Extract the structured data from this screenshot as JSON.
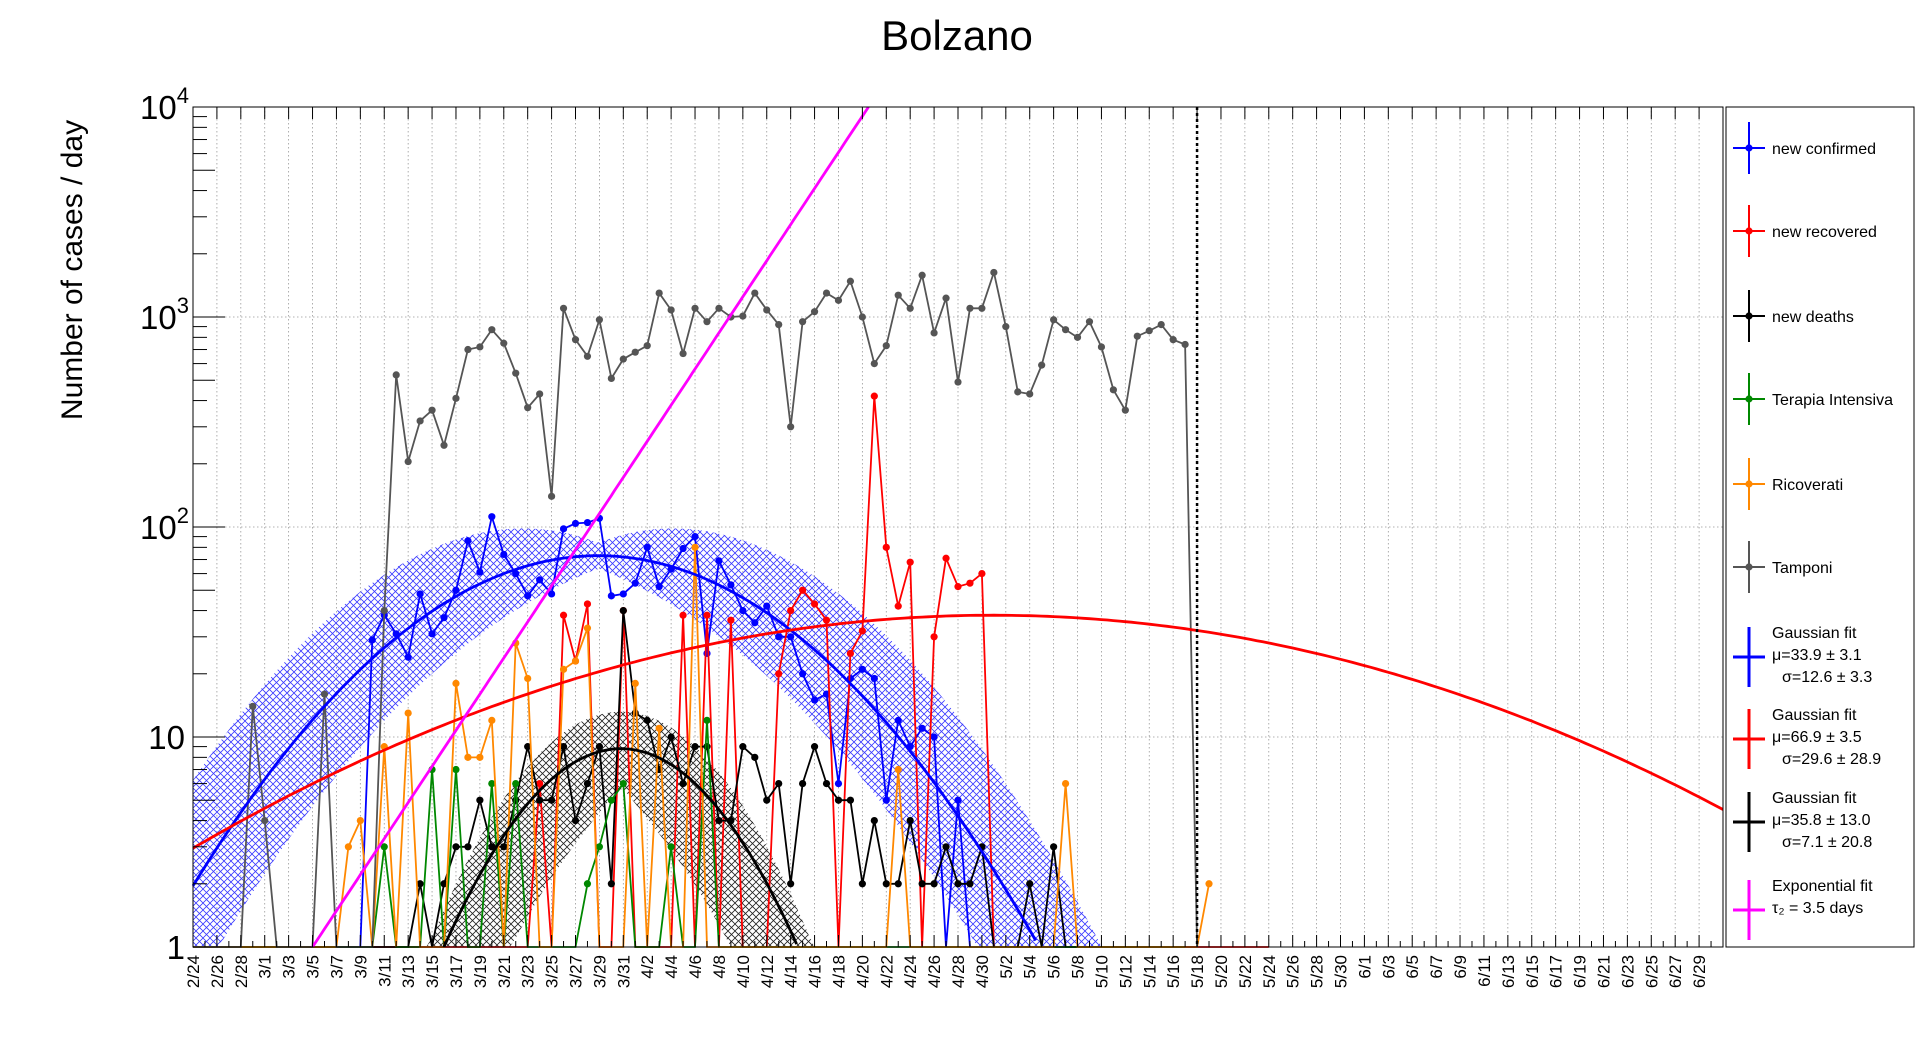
{
  "chart_data": {
    "type": "line",
    "title": "Bolzano",
    "ylabel": "Number of cases / day",
    "xlabel": "",
    "y_scale": "log",
    "ylim": [
      1,
      10000
    ],
    "y_ticks": [
      {
        "value": 1,
        "base": "1",
        "exp": ""
      },
      {
        "value": 10,
        "base": "10",
        "exp": ""
      },
      {
        "value": 100,
        "base": "10",
        "exp": "2"
      },
      {
        "value": 1000,
        "base": "10",
        "exp": "3"
      },
      {
        "value": 10000,
        "base": "10",
        "exp": "4"
      }
    ],
    "x_start": "2/24",
    "x_days": 128,
    "x_tick_labels": [
      "2/24",
      "2/26",
      "2/28",
      "3/1",
      "3/3",
      "3/5",
      "3/7",
      "3/9",
      "3/11",
      "3/13",
      "3/15",
      "3/17",
      "3/19",
      "3/21",
      "3/23",
      "3/25",
      "3/27",
      "3/29",
      "3/31",
      "4/2",
      "4/4",
      "4/6",
      "4/8",
      "4/10",
      "4/12",
      "4/14",
      "4/16",
      "4/18",
      "4/20",
      "4/22",
      "4/24",
      "4/26",
      "4/28",
      "4/30",
      "5/2",
      "5/4",
      "5/6",
      "5/8",
      "5/10",
      "5/12",
      "5/14",
      "5/16",
      "5/18",
      "5/20",
      "5/22",
      "5/24",
      "5/26",
      "5/28",
      "5/30",
      "6/1",
      "6/3",
      "6/5",
      "6/7",
      "6/9",
      "6/11",
      "6/13",
      "6/15",
      "6/17",
      "6/19",
      "6/21",
      "6/23",
      "6/25",
      "6/27",
      "6/29"
    ],
    "vline_day": 84,
    "grid": true,
    "legend_position": "right",
    "series": [
      {
        "name": "new confirmed",
        "color": "#0000ff",
        "start_day": 0,
        "values": [
          1,
          1,
          1,
          1,
          1,
          1,
          1,
          1,
          1,
          1,
          1,
          1,
          1,
          1,
          1,
          29,
          38,
          31,
          24,
          48,
          31,
          37,
          50,
          86,
          61,
          112,
          74,
          60,
          47,
          56,
          48,
          98,
          104,
          105,
          110,
          47,
          48,
          54,
          80,
          52,
          63,
          79,
          90,
          25,
          69,
          53,
          40,
          35,
          42,
          30,
          30,
          20,
          15,
          16,
          6,
          19,
          21,
          19,
          5,
          12,
          9,
          11,
          10,
          1,
          5,
          1,
          1,
          1,
          1,
          1,
          1,
          1,
          1,
          1,
          1,
          1,
          1,
          1,
          1,
          1,
          1,
          1,
          1,
          1,
          1
        ]
      },
      {
        "name": "new recovered",
        "color": "#ff0000",
        "start_day": 0,
        "values": [
          1,
          1,
          1,
          1,
          1,
          1,
          1,
          1,
          1,
          1,
          1,
          1,
          1,
          1,
          1,
          1,
          1,
          1,
          1,
          1,
          1,
          1,
          1,
          1,
          1,
          1,
          1,
          1,
          1,
          6,
          1,
          38,
          23,
          43,
          1,
          1,
          40,
          1,
          1,
          1,
          1,
          38,
          1,
          38,
          1,
          36,
          1,
          1,
          1,
          20,
          40,
          50,
          43,
          36,
          1,
          25,
          32,
          420,
          80,
          42,
          68,
          1,
          30,
          71,
          52,
          54,
          60,
          1,
          1,
          1,
          1,
          1,
          1,
          1,
          1,
          1,
          1,
          1,
          1,
          1,
          1,
          1,
          1,
          1,
          1,
          1,
          1,
          1,
          1,
          1,
          1
        ]
      },
      {
        "name": "new deaths",
        "color": "#000000",
        "start_day": 0,
        "values": [
          1,
          1,
          1,
          1,
          1,
          1,
          1,
          1,
          1,
          1,
          1,
          1,
          1,
          1,
          1,
          1,
          1,
          1,
          1,
          2,
          1,
          2,
          3,
          3,
          5,
          3,
          3,
          5,
          9,
          5,
          5,
          9,
          4,
          6,
          9,
          2,
          40,
          13,
          12,
          7,
          10,
          6,
          9,
          9,
          4,
          4,
          9,
          8,
          5,
          6,
          2,
          6,
          9,
          6,
          5,
          5,
          2,
          4,
          2,
          2,
          4,
          2,
          2,
          3,
          2,
          2,
          3,
          1,
          1,
          1,
          2,
          1,
          3,
          1,
          1,
          1,
          1,
          1,
          1,
          1
        ]
      },
      {
        "name": "Terapia Intensiva",
        "color": "#008800",
        "start_day": 0,
        "values": [
          1,
          1,
          1,
          1,
          1,
          1,
          1,
          1,
          1,
          1,
          1,
          1,
          1,
          1,
          1,
          1,
          3,
          1,
          1,
          1,
          7,
          1,
          7,
          1,
          1,
          6,
          1,
          6,
          1,
          1,
          1,
          1,
          1,
          2,
          3,
          5,
          6,
          1,
          1,
          1,
          3,
          1,
          1,
          12,
          1,
          1,
          1,
          1,
          1,
          1,
          1,
          1,
          1,
          1,
          1,
          1,
          1,
          1,
          1,
          1,
          1,
          1,
          1,
          1,
          1,
          1,
          1,
          1,
          1,
          1,
          1,
          1,
          1,
          1,
          1,
          1,
          1,
          1,
          1,
          1,
          1,
          1,
          1,
          1
        ]
      },
      {
        "name": "Ricoverati",
        "color": "#ff8800",
        "start_day": 0,
        "values": [
          1,
          1,
          1,
          1,
          1,
          1,
          1,
          1,
          1,
          1,
          1,
          1,
          1,
          3,
          4,
          1,
          9,
          1,
          13,
          1,
          1,
          1,
          18,
          8,
          8,
          12,
          1,
          28,
          19,
          1,
          1,
          21,
          23,
          33,
          1,
          1,
          1,
          18,
          1,
          11,
          1,
          1,
          80,
          1,
          1,
          1,
          1,
          1,
          1,
          1,
          1,
          1,
          1,
          1,
          1,
          1,
          1,
          1,
          1,
          7,
          1,
          1,
          1,
          1,
          1,
          1,
          1,
          1,
          1,
          1,
          1,
          1,
          1,
          6,
          1,
          1,
          1,
          1,
          1,
          1,
          1,
          1,
          1,
          1,
          1,
          2
        ]
      },
      {
        "name": "Tamponi",
        "color": "#555555",
        "start_day": 0,
        "values": [
          1,
          1,
          1,
          1,
          1,
          14,
          4,
          1,
          1,
          1,
          1,
          16,
          1,
          1,
          1,
          1,
          40,
          530,
          205,
          320,
          360,
          245,
          410,
          700,
          720,
          870,
          750,
          540,
          370,
          430,
          140,
          1100,
          780,
          650,
          970,
          510,
          630,
          680,
          730,
          1300,
          1080,
          670,
          1100,
          950,
          1100,
          1000,
          1010,
          1300,
          1080,
          920,
          300,
          950,
          1060,
          1300,
          1200,
          1480,
          1000,
          600,
          730,
          1270,
          1100,
          1580,
          840,
          1230,
          490,
          1100,
          1100,
          1630,
          900,
          440,
          430,
          590,
          970,
          870,
          800,
          950,
          720,
          450,
          360,
          810,
          860,
          920,
          780,
          740,
          1
        ]
      }
    ],
    "fits": [
      {
        "name": "Gaussian fit",
        "color": "#0000ff",
        "params": [
          "μ=33.9 ± 3.1",
          "σ=12.6 ± 3.3"
        ],
        "amplitude": 73,
        "mu": 33.9,
        "sigma": 12.6
      },
      {
        "name": "Gaussian fit",
        "color": "#ff0000",
        "params": [
          "μ=66.9 ± 3.5",
          "σ=29.6 ± 28.9"
        ],
        "amplitude": 38,
        "mu": 66.9,
        "sigma": 29.6
      },
      {
        "name": "Gaussian fit",
        "color": "#000000",
        "params": [
          "μ=35.8 ± 13.0",
          "σ=7.1 ± 20.8"
        ],
        "amplitude": 8.8,
        "mu": 35.8,
        "sigma": 7.1
      },
      {
        "name": "Exponential fit",
        "color": "#ff00ff",
        "params": [
          "τ₂ = 3.5 days"
        ],
        "tau2": 3.5,
        "start_day": 10
      }
    ]
  }
}
